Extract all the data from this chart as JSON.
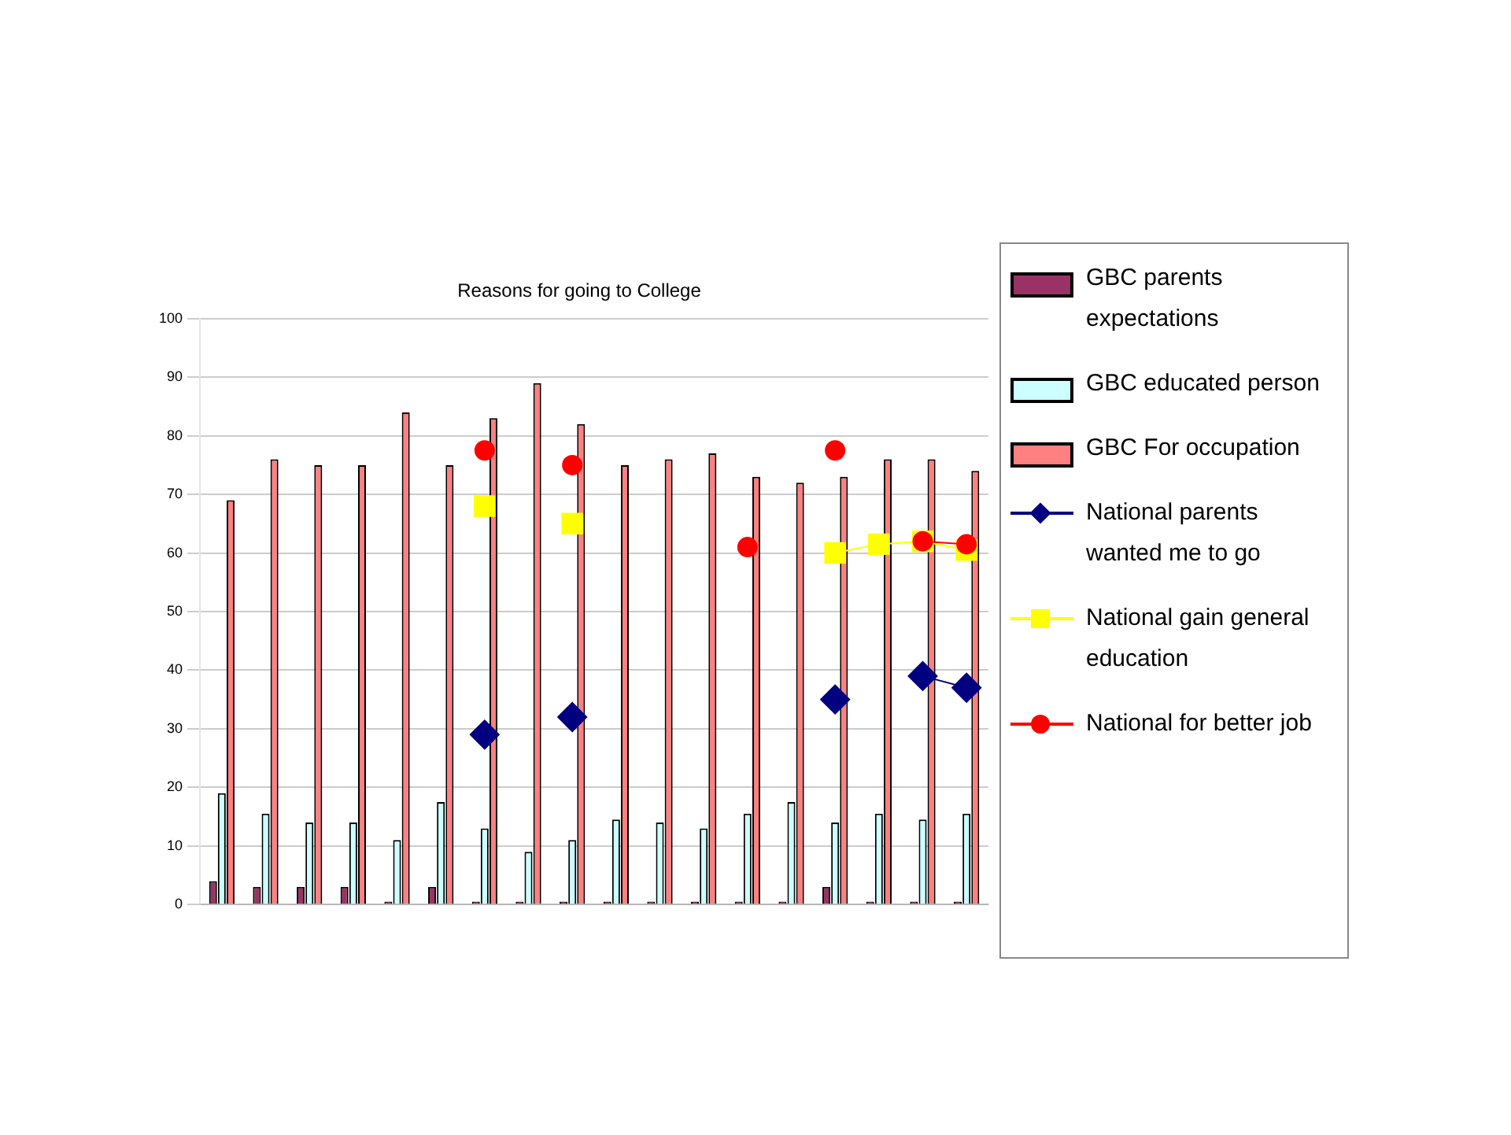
{
  "chart_data": {
    "type": "bar",
    "title": "Reasons for going to College",
    "categories": [
      null,
      null,
      null,
      null,
      null,
      null,
      null,
      null,
      null,
      null,
      null,
      null,
      null,
      null,
      null,
      null,
      null,
      null
    ],
    "series": [
      {
        "name": "GBC parents expectations",
        "color": "#993366",
        "values": [
          4,
          3,
          3,
          3,
          0.5,
          3,
          0.5,
          0.5,
          0.5,
          0.5,
          0.5,
          0.5,
          0.5,
          0.5,
          3,
          0.5,
          0.5,
          0.5
        ]
      },
      {
        "name": "GBC educated person",
        "color": "#ccffff",
        "values": [
          19,
          15.5,
          14,
          14,
          11,
          17.5,
          13,
          9,
          11,
          14.5,
          14,
          13,
          15.5,
          17.5,
          14,
          15.5,
          14.5,
          15.5
        ]
      },
      {
        "name": "GBC For occupation",
        "color": "#ff8080",
        "values": [
          69,
          76,
          75,
          75,
          84,
          75,
          83,
          89,
          82,
          75,
          76,
          77,
          73,
          72,
          73,
          76,
          76,
          74
        ]
      },
      {
        "name": "National parents wanted me to go",
        "type": "line",
        "marker": "diamond",
        "color": "#000080",
        "values": [
          null,
          null,
          null,
          null,
          null,
          null,
          29,
          null,
          32,
          null,
          null,
          null,
          null,
          null,
          35,
          null,
          39,
          37
        ]
      },
      {
        "name": "National gain general education",
        "type": "line",
        "marker": "square",
        "color": "#ffff00",
        "values": [
          null,
          null,
          null,
          null,
          null,
          null,
          68,
          null,
          65,
          null,
          null,
          null,
          null,
          null,
          60,
          61.5,
          62,
          60.5
        ]
      },
      {
        "name": "National for better job",
        "type": "line",
        "marker": "circle",
        "color": "#ff0000",
        "values": [
          null,
          null,
          null,
          null,
          null,
          null,
          77.5,
          null,
          75,
          null,
          null,
          null,
          61,
          null,
          77.5,
          null,
          62,
          61.5
        ]
      }
    ],
    "ylim": [
      0,
      100
    ],
    "yticks": [
      0,
      10,
      20,
      30,
      40,
      50,
      60,
      70,
      80,
      90,
      100
    ],
    "grid": "y",
    "legend": "right"
  }
}
